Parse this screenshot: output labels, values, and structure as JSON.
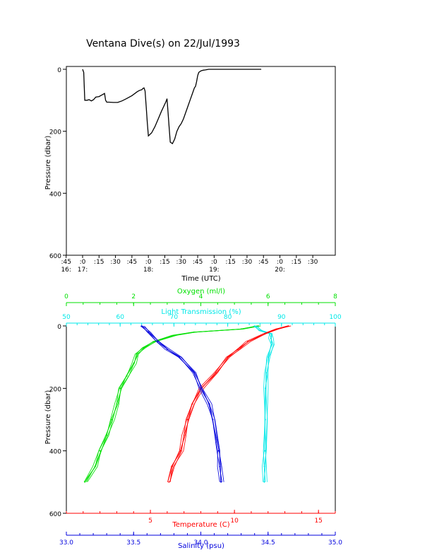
{
  "title": "Ventana Dive(s) on 22/Jul/1993",
  "colors": {
    "axis": "#000000",
    "oxygen": "#00e000",
    "transmission": "#00e8e8",
    "temperature": "#ff0000",
    "salinity": "#0000dd",
    "trace": "#000000"
  },
  "chart_data": [
    {
      "type": "line",
      "ylabel": "Pressure (dbar)",
      "xlabel": "Time (UTC)",
      "y_reversed": true,
      "ylim": [
        0,
        600
      ],
      "y_ticks": [
        "0",
        "200",
        "400",
        "600"
      ],
      "x_unit": "minutes after 16:00 UTC",
      "xlim": [
        45,
        256
      ],
      "x_ticks": [
        {
          "x": 45,
          "top": ":45",
          "bottom": "16:"
        },
        {
          "x": 60,
          "top": ":0",
          "bottom": "17:"
        },
        {
          "x": 75,
          "top": ":15",
          "bottom": ""
        },
        {
          "x": 90,
          "top": ":30",
          "bottom": ""
        },
        {
          "x": 105,
          "top": ":45",
          "bottom": ""
        },
        {
          "x": 120,
          "top": ":0",
          "bottom": "18:"
        },
        {
          "x": 135,
          "top": ":15",
          "bottom": ""
        },
        {
          "x": 150,
          "top": ":30",
          "bottom": ""
        },
        {
          "x": 165,
          "top": ":45",
          "bottom": ""
        },
        {
          "x": 180,
          "top": ":0",
          "bottom": "19:"
        },
        {
          "x": 195,
          "top": ":15",
          "bottom": ""
        },
        {
          "x": 210,
          "top": ":30",
          "bottom": ""
        },
        {
          "x": 225,
          "top": ":45",
          "bottom": ""
        },
        {
          "x": 240,
          "top": ":0",
          "bottom": "20:"
        },
        {
          "x": 255,
          "top": ":15",
          "bottom": ""
        },
        {
          "x": 270,
          "top": ":30",
          "bottom": ""
        }
      ],
      "series": [
        {
          "x": [
            60,
            61,
            62,
            64,
            66,
            68,
            70,
            72,
            75,
            78,
            80,
            81,
            82,
            84,
            88,
            92,
            96,
            100,
            105,
            110,
            112,
            114,
            115,
            116,
            117,
            118,
            119,
            120,
            123,
            126,
            129,
            132,
            134,
            136,
            137,
            138,
            139,
            140,
            142,
            144,
            146,
            148,
            150,
            152,
            154,
            156,
            158,
            160,
            162,
            163,
            164,
            165,
            166,
            168,
            170,
            172,
            175,
            177,
            178,
            181,
            182,
            183,
            185,
            188,
            191,
            194,
            197,
            200,
            203,
            205,
            206,
            208,
            210,
            211,
            212,
            214,
            216,
            217,
            218,
            219,
            220,
            221,
            222,
            223
          ],
          "y": [
            0,
            10,
            100,
            100,
            98,
            102,
            98,
            90,
            88,
            82,
            78,
            100,
            106,
            106,
            107,
            107,
            102,
            95,
            85,
            72,
            68,
            66,
            62,
            60,
            70,
            120,
            170,
            215,
            205,
            185,
            160,
            135,
            120,
            105,
            95,
            140,
            190,
            235,
            240,
            225,
            200,
            185,
            175,
            160,
            140,
            120,
            100,
            80,
            60,
            55,
            40,
            20,
            10,
            5,
            3,
            2,
            0,
            0,
            0,
            0,
            0,
            0,
            0,
            0,
            0,
            0,
            0,
            0,
            0,
            0,
            0,
            0,
            0,
            0,
            0,
            0,
            0,
            0,
            0,
            0,
            0,
            0,
            0,
            0
          ]
        }
      ]
    },
    {
      "type": "line",
      "ylabel": "Pressure (dbar)",
      "y_reversed": true,
      "ylim": [
        0,
        600
      ],
      "y_ticks": [
        "0",
        "200",
        "400",
        "600"
      ],
      "axes": [
        {
          "key": "oxygen",
          "label": "Oxygen (ml/l)",
          "position": "top",
          "lim": [
            0,
            8
          ],
          "ticks": [
            "0",
            "2",
            "4",
            "6",
            "8"
          ]
        },
        {
          "key": "transmission",
          "label": "Light Transmission (%)",
          "position": "top",
          "lim": [
            50,
            100
          ],
          "ticks": [
            "50",
            "60",
            "70",
            "80",
            "90",
            "100"
          ]
        },
        {
          "key": "temperature",
          "label": "Temperature (C)",
          "position": "bottom",
          "lim": [
            0,
            16
          ],
          "ticks": [
            "5",
            "10",
            "15"
          ]
        },
        {
          "key": "salinity",
          "label": "Salinity (psu)",
          "position": "bottom",
          "lim": [
            33.0,
            35.0
          ],
          "ticks": [
            "33.0",
            "33.5",
            "34.0",
            "34.5",
            "35.0"
          ]
        }
      ],
      "series": [
        {
          "name": "Oxygen",
          "axis": "oxygen",
          "pressure": [
            0,
            10,
            20,
            30,
            50,
            70,
            90,
            120,
            160,
            200,
            250,
            300,
            350,
            400,
            450,
            500
          ],
          "values": [
            5.7,
            5.2,
            3.8,
            3.2,
            2.6,
            2.3,
            2.1,
            2.0,
            1.8,
            1.6,
            1.5,
            1.35,
            1.2,
            1.0,
            0.85,
            0.55
          ]
        },
        {
          "name": "Light Transmission",
          "axis": "transmission",
          "pressure": [
            0,
            15,
            25,
            40,
            60,
            100,
            150,
            200,
            300,
            400,
            450,
            500
          ],
          "values": [
            85.0,
            86.0,
            88.0,
            88.0,
            88.2,
            87.5,
            87.2,
            87.0,
            87.0,
            86.9,
            86.8,
            86.8
          ]
        },
        {
          "name": "Temperature",
          "axis": "temperature",
          "pressure": [
            0,
            10,
            25,
            50,
            75,
            100,
            150,
            200,
            250,
            300,
            350,
            400,
            450,
            500
          ],
          "values": [
            13.2,
            12.5,
            11.8,
            10.8,
            10.2,
            9.6,
            8.9,
            8.0,
            7.5,
            7.2,
            7.0,
            6.8,
            6.3,
            6.1
          ]
        },
        {
          "name": "Salinity",
          "axis": "salinity",
          "pressure": [
            0,
            20,
            50,
            75,
            100,
            150,
            200,
            250,
            300,
            400,
            450,
            500
          ],
          "values": [
            33.56,
            33.61,
            33.68,
            33.75,
            33.84,
            33.95,
            34.0,
            34.06,
            34.09,
            34.13,
            34.14,
            34.15
          ]
        }
      ]
    }
  ]
}
